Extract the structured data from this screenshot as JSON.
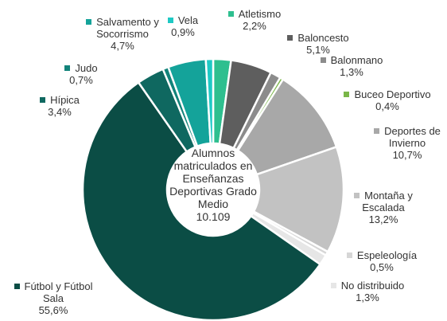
{
  "chart_data": {
    "type": "donut",
    "center_title": "Alumnos matriculados en Enseñanzas Deportivas Grado Medio",
    "center_value": "10.109",
    "categories": [
      "Atletismo",
      "Baloncesto",
      "Balonmano",
      "Buceo Deportivo",
      "Deportes de Invierno",
      "Montaña y Escalada",
      "Espeleología",
      "No distribuido",
      "Fútbol y Fútbol Sala",
      "Hípica",
      "Judo",
      "Salvamento y Socorrismo",
      "Vela"
    ],
    "values": [
      2.2,
      5.1,
      1.3,
      0.4,
      10.7,
      13.2,
      0.5,
      1.3,
      55.6,
      3.4,
      0.7,
      4.7,
      0.9
    ],
    "value_labels": [
      "2,2%",
      "5,1%",
      "1,3%",
      "0,4%",
      "10,7%",
      "13,2%",
      "0,5%",
      "1,3%",
      "55,6%",
      "3,4%",
      "0,7%",
      "4,7%",
      "0,9%"
    ],
    "colors": [
      "#2ebf8f",
      "#5e5e5e",
      "#8c8c8c",
      "#7ab648",
      "#a8a8a8",
      "#c2c2c2",
      "#d6d6d6",
      "#e6e6e6",
      "#0b4d45",
      "#0f6860",
      "#12837a",
      "#14a39a",
      "#1ec9c4"
    ]
  }
}
